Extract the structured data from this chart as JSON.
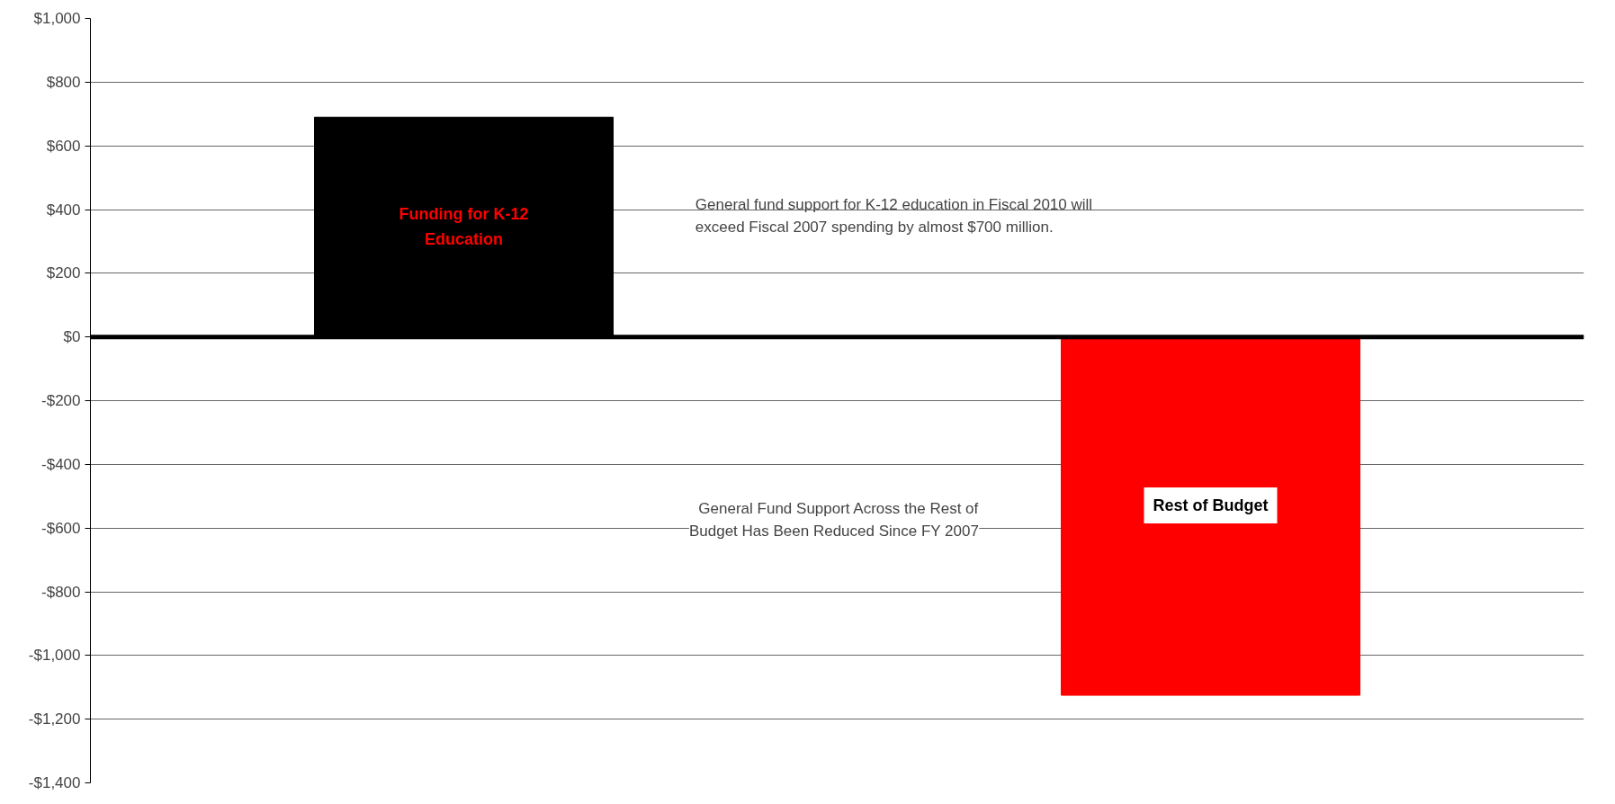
{
  "chart_data": {
    "type": "bar",
    "categories": [
      null,
      null
    ],
    "values": [
      690,
      -1125
    ],
    "colors": [
      "#000000",
      "#ff0000"
    ],
    "ylim": [
      -1400,
      1000
    ],
    "yticks": [
      {
        "value": -1400,
        "label": "-$1,400"
      },
      {
        "value": -1200,
        "label": "-$1,200"
      },
      {
        "value": -1000,
        "label": "-$1,000"
      },
      {
        "value": -800,
        "label": "-$800"
      },
      {
        "value": -600,
        "label": "-$600"
      },
      {
        "value": -400,
        "label": "-$400"
      },
      {
        "value": -200,
        "label": "-$200"
      },
      {
        "value": 0,
        "label": "$0"
      },
      {
        "value": 200,
        "label": "$200"
      },
      {
        "value": 400,
        "label": "$400"
      },
      {
        "value": 600,
        "label": "$600"
      },
      {
        "value": 800,
        "label": "$800"
      },
      {
        "value": 1000,
        "label": "$1,000"
      }
    ],
    "grid": "y",
    "tick_labels": "y",
    "ref_lines": [
      {
        "axis": "y",
        "value": 0,
        "color": "#000000"
      }
    ],
    "annotations": [
      "Funding for K-12 Education",
      "Rest of Budget",
      "General fund support for K-12 education in Fiscal 2010 will exceed Fiscal 2007 spending by almost $700 million.",
      "General Fund Support Across the Rest of Budget Has Been Reduced Since FY 2007"
    ]
  }
}
